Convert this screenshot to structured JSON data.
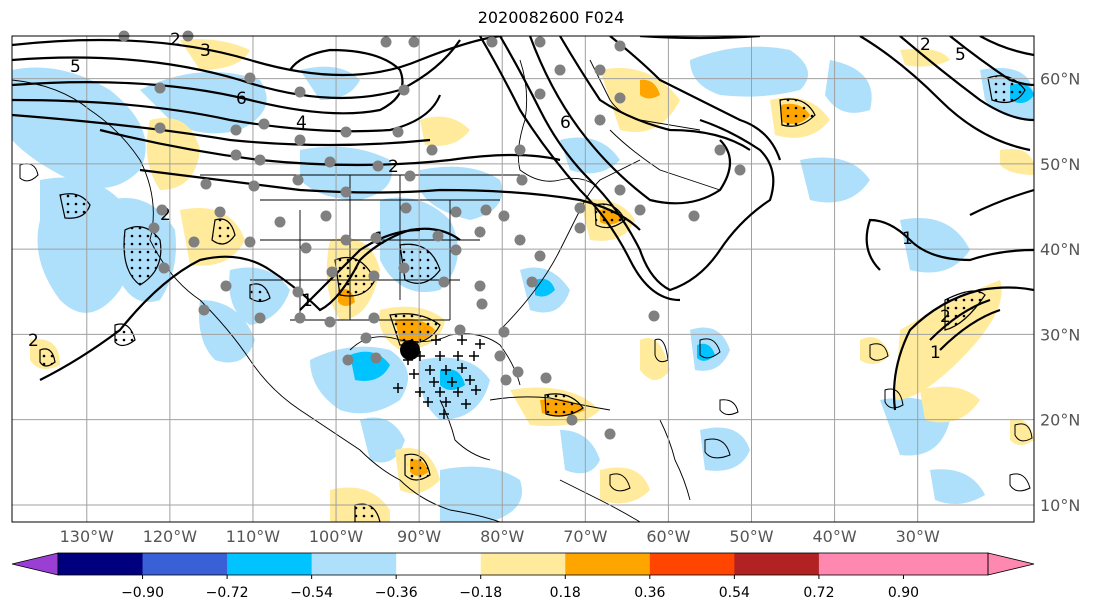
{
  "title": "2020082600 F024",
  "map": {
    "lon_range": [
      -139,
      -16
    ],
    "lat_range": [
      8,
      65
    ],
    "lon_ticks": [
      "130°W",
      "120°W",
      "110°W",
      "100°W",
      "90°W",
      "80°W",
      "70°W",
      "60°W",
      "50°W",
      "40°W",
      "30°W"
    ],
    "lon_tick_values": [
      -130,
      -120,
      -110,
      -100,
      -90,
      -80,
      -70,
      -60,
      -50,
      -40,
      -30
    ],
    "lat_ticks": [
      "60°N",
      "50°N",
      "40°N",
      "30°N",
      "20°N",
      "10°N"
    ],
    "lat_tick_values": [
      60,
      50,
      40,
      30,
      20,
      10
    ],
    "contour_labels": [
      "5",
      "3",
      "2",
      "6",
      "4",
      "2",
      "6",
      "2",
      "5",
      "2",
      "1",
      "1",
      "2",
      "1",
      "1",
      "2"
    ],
    "storm_center_marker": "filled-black-circle"
  },
  "colorbar": {
    "ticks": [
      "−0.90",
      "−0.72",
      "−0.54",
      "−0.36",
      "−0.18",
      "0.18",
      "0.36",
      "0.54",
      "0.72",
      "0.90"
    ],
    "colors": [
      "#9b3fd4",
      "#00007f",
      "#3a60d8",
      "#00c3ff",
      "#aee0fb",
      "#ffffff",
      "#ffeb9b",
      "#ffa500",
      "#ff4500",
      "#b22222",
      "#ff88b0",
      "#ff88b0"
    ]
  }
}
